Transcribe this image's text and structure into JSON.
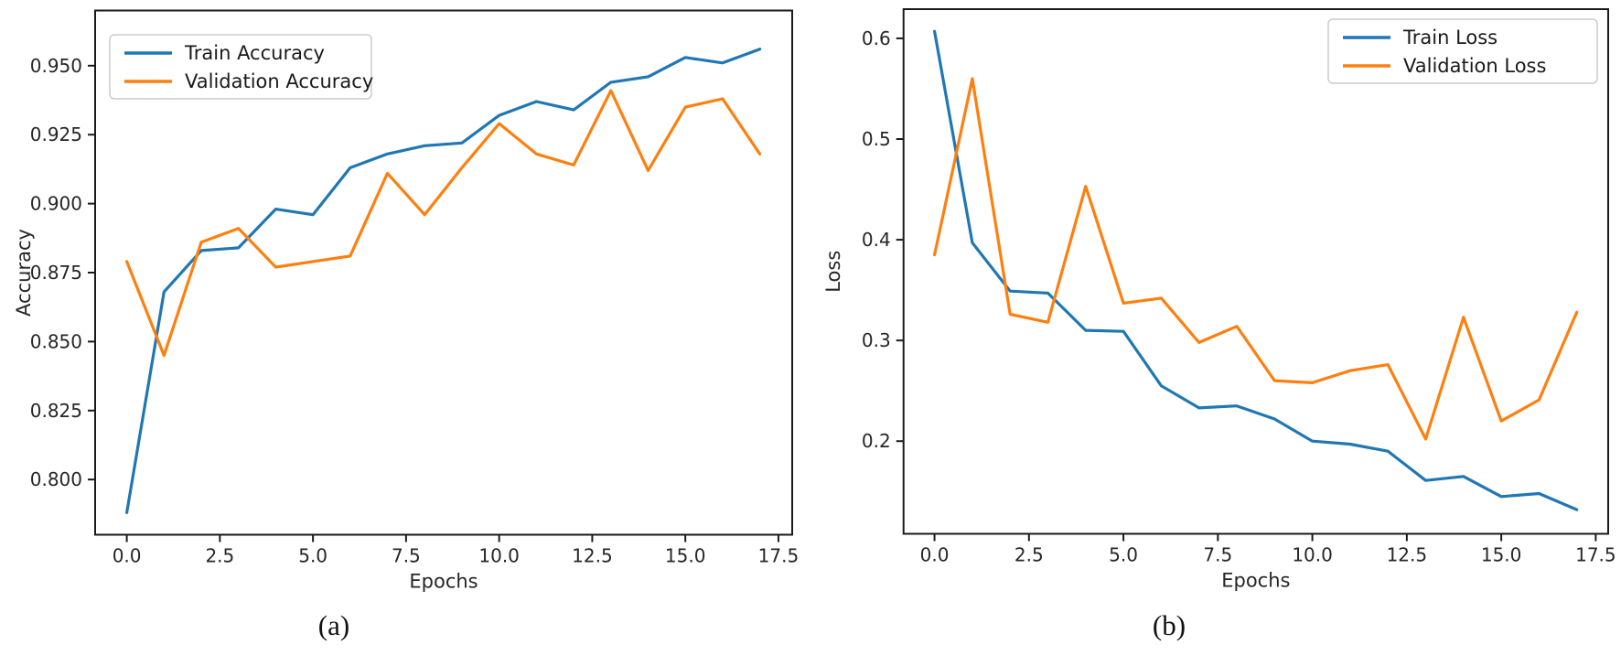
{
  "page": {
    "background": "#ffffff"
  },
  "captions": {
    "left": "(a)",
    "right": "(b)"
  },
  "colors": {
    "train": "#1f77b4",
    "validation": "#ff7f0e",
    "axis": "#1a1a1a",
    "tick_label": "#262626",
    "legend_border": "#cccccc",
    "legend_fill": "#ffffff"
  },
  "chart_data": [
    {
      "id": "accuracy-chart",
      "type": "line",
      "title": "",
      "xlabel": "Epochs",
      "ylabel": "Accuracy",
      "x": [
        0,
        1,
        2,
        3,
        4,
        5,
        6,
        7,
        8,
        9,
        10,
        11,
        12,
        13,
        14,
        15,
        16,
        17
      ],
      "series": [
        {
          "name": "Train Accuracy",
          "color": "#1f77b4",
          "values": [
            0.788,
            0.868,
            0.883,
            0.884,
            0.898,
            0.896,
            0.913,
            0.918,
            0.921,
            0.922,
            0.932,
            0.937,
            0.934,
            0.944,
            0.946,
            0.953,
            0.951,
            0.956
          ]
        },
        {
          "name": "Validation Accuracy",
          "color": "#ff7f0e",
          "values": [
            0.879,
            0.845,
            0.886,
            0.891,
            0.877,
            0.879,
            0.881,
            0.911,
            0.896,
            0.913,
            0.929,
            0.918,
            0.914,
            0.941,
            0.912,
            0.935,
            0.938,
            0.918
          ]
        }
      ],
      "xticks": {
        "values": [
          0,
          2.5,
          5,
          7.5,
          10,
          12.5,
          15,
          17.5
        ],
        "labels": [
          "0.0",
          "2.5",
          "5.0",
          "7.5",
          "10.0",
          "12.5",
          "15.0",
          "17.5"
        ]
      },
      "yticks": {
        "values": [
          0.8,
          0.825,
          0.85,
          0.875,
          0.9,
          0.925,
          0.95
        ],
        "labels": [
          "0.800",
          "0.825",
          "0.850",
          "0.875",
          "0.900",
          "0.925",
          "0.950"
        ]
      },
      "xlim": [
        -0.85,
        17.87
      ],
      "ylim": [
        0.78,
        0.97
      ],
      "legend_position": "top-left",
      "grid": false
    },
    {
      "id": "loss-chart",
      "type": "line",
      "title": "",
      "xlabel": "Epochs",
      "ylabel": "Loss",
      "x": [
        0,
        1,
        2,
        3,
        4,
        5,
        6,
        7,
        8,
        9,
        10,
        11,
        12,
        13,
        14,
        15,
        16,
        17
      ],
      "series": [
        {
          "name": "Train Loss",
          "color": "#1f77b4",
          "values": [
            0.607,
            0.397,
            0.349,
            0.347,
            0.31,
            0.309,
            0.255,
            0.233,
            0.235,
            0.222,
            0.2,
            0.197,
            0.19,
            0.161,
            0.165,
            0.145,
            0.148,
            0.132
          ]
        },
        {
          "name": "Validation Loss",
          "color": "#ff7f0e",
          "values": [
            0.385,
            0.56,
            0.326,
            0.318,
            0.453,
            0.337,
            0.342,
            0.298,
            0.314,
            0.26,
            0.258,
            0.27,
            0.276,
            0.202,
            0.323,
            0.22,
            0.241,
            0.328
          ]
        }
      ],
      "xticks": {
        "values": [
          0,
          2.5,
          5,
          7.5,
          10,
          12.5,
          15,
          17.5
        ],
        "labels": [
          "0.0",
          "2.5",
          "5.0",
          "7.5",
          "10.0",
          "12.5",
          "15.0",
          "17.5"
        ]
      },
      "yticks": {
        "values": [
          0.2,
          0.3,
          0.4,
          0.5,
          0.6
        ],
        "labels": [
          "0.2",
          "0.3",
          "0.4",
          "0.5",
          "0.6"
        ]
      },
      "xlim": [
        -0.82,
        17.83
      ],
      "ylim": [
        0.108,
        0.629
      ],
      "legend_position": "top-right",
      "grid": false
    }
  ]
}
